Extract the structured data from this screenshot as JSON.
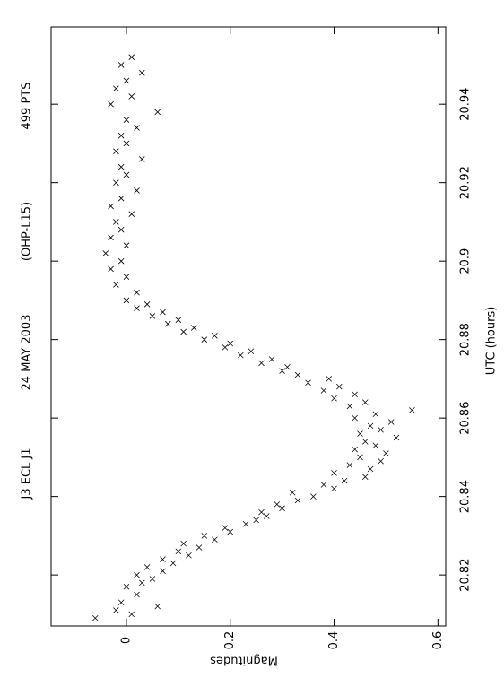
{
  "chart_data": {
    "type": "scatter",
    "annotations": [
      "J3 ECL J1",
      "24 MAY 2003",
      "(OHP-L15)",
      "499 PTS"
    ],
    "xlabel": "UTC (hours)",
    "ylabel": "Magnitudes",
    "xlim": [
      20.807,
      20.9597
    ],
    "ylim": [
      -0.145,
      0.615
    ],
    "xticks": [
      20.82,
      20.84,
      20.86,
      20.88,
      20.9,
      20.92,
      20.94
    ],
    "yticks": [
      0,
      0.2,
      0.4,
      0.6
    ],
    "color": "#000000",
    "series": [
      {
        "name": "UTC",
        "x": [
          20.809,
          20.81,
          20.811,
          20.812,
          20.813,
          20.815,
          20.817,
          20.818,
          20.819,
          20.82,
          20.821,
          20.822,
          20.823,
          20.824,
          20.825,
          20.826,
          20.827,
          20.828,
          20.829,
          20.83,
          20.831,
          20.832,
          20.833,
          20.834,
          20.835,
          20.836,
          20.837,
          20.838,
          20.839,
          20.84,
          20.841,
          20.842,
          20.843,
          20.844,
          20.845,
          20.846,
          20.847,
          20.848,
          20.849,
          20.85,
          20.851,
          20.852,
          20.853,
          20.854,
          20.855,
          20.856,
          20.857,
          20.858,
          20.859,
          20.86,
          20.861,
          20.862,
          20.863,
          20.864,
          20.865,
          20.866,
          20.867,
          20.868,
          20.869,
          20.87,
          20.871,
          20.872,
          20.873,
          20.874,
          20.875,
          20.876,
          20.877,
          20.878,
          20.879,
          20.88,
          20.881,
          20.882,
          20.883,
          20.884,
          20.885,
          20.886,
          20.887,
          20.888,
          20.889,
          20.89,
          20.892,
          20.894,
          20.896,
          20.898,
          20.9,
          20.902,
          20.904,
          20.906,
          20.908,
          20.91,
          20.912,
          20.914,
          20.916,
          20.918,
          20.92,
          20.922,
          20.924,
          20.926,
          20.928,
          20.93,
          20.932,
          20.934,
          20.936,
          20.938,
          20.94,
          20.942,
          20.944,
          20.946,
          20.948,
          20.95,
          20.952
        ],
        "values": [
          -0.06,
          0.01,
          -0.02,
          0.06,
          -0.01,
          0.02,
          0.0,
          0.03,
          0.05,
          0.02,
          0.07,
          0.04,
          0.09,
          0.07,
          0.12,
          0.1,
          0.14,
          0.11,
          0.17,
          0.15,
          0.2,
          0.19,
          0.23,
          0.25,
          0.27,
          0.26,
          0.3,
          0.29,
          0.33,
          0.36,
          0.32,
          0.4,
          0.38,
          0.42,
          0.46,
          0.4,
          0.47,
          0.43,
          0.49,
          0.45,
          0.5,
          0.44,
          0.48,
          0.46,
          0.52,
          0.45,
          0.49,
          0.47,
          0.51,
          0.44,
          0.48,
          0.55,
          0.43,
          0.46,
          0.4,
          0.44,
          0.38,
          0.41,
          0.35,
          0.39,
          0.33,
          0.3,
          0.31,
          0.26,
          0.28,
          0.22,
          0.24,
          0.19,
          0.2,
          0.15,
          0.17,
          0.11,
          0.13,
          0.08,
          0.1,
          0.05,
          0.07,
          0.02,
          0.04,
          0.0,
          0.02,
          -0.02,
          0.0,
          -0.03,
          -0.01,
          -0.04,
          0.0,
          -0.03,
          -0.01,
          -0.02,
          0.01,
          -0.03,
          -0.01,
          0.02,
          -0.02,
          0.0,
          -0.01,
          0.03,
          -0.02,
          0.0,
          -0.01,
          0.02,
          0.0,
          0.06,
          -0.03,
          0.01,
          -0.02,
          0.0,
          0.03,
          -0.01,
          0.01
        ]
      }
    ]
  }
}
